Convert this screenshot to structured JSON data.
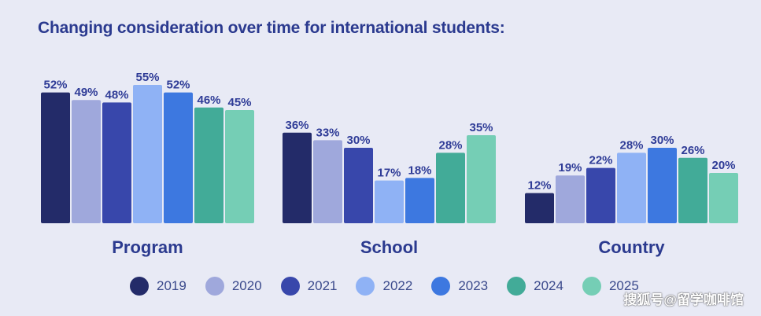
{
  "title": "Changing consideration over time for international students:",
  "watermark": "搜狐号@留学咖啡馆",
  "colors": {
    "2019": "#232b69",
    "2020": "#9fa8dc",
    "2021": "#3847ab",
    "2022": "#8fb2f5",
    "2023": "#3d78e0",
    "2024": "#42ab98",
    "2025": "#75ceb5"
  },
  "chart_data": {
    "type": "bar",
    "title": "Changing consideration over time for international students:",
    "categories": [
      "Program",
      "School",
      "Country"
    ],
    "value_suffix": "%",
    "series": [
      {
        "name": "2019",
        "values": [
          52,
          36,
          12
        ]
      },
      {
        "name": "2020",
        "values": [
          49,
          33,
          19
        ]
      },
      {
        "name": "2021",
        "values": [
          48,
          30,
          22
        ]
      },
      {
        "name": "2022",
        "values": [
          55,
          17,
          28
        ]
      },
      {
        "name": "2023",
        "values": [
          52,
          18,
          30
        ]
      },
      {
        "name": "2024",
        "values": [
          46,
          28,
          26
        ]
      },
      {
        "name": "2025",
        "values": [
          45,
          35,
          20
        ]
      }
    ],
    "ylim": [
      0,
      60
    ],
    "grid": false,
    "legend": "bottom"
  }
}
